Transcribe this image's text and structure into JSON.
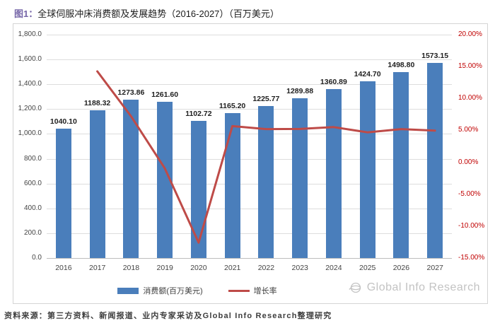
{
  "figure_title": {
    "tag": "图1：",
    "text": "全球伺服冲床消费额及发展趋势（2016-2027）（百万美元）"
  },
  "chart_data": {
    "type": "bar",
    "combo_types": [
      "bar",
      "line"
    ],
    "title": "全球伺服冲床消费额及发展趋势（2016-2027）（百万美元）",
    "categories": [
      "2016",
      "2017",
      "2018",
      "2019",
      "2020",
      "2021",
      "2022",
      "2023",
      "2024",
      "2025",
      "2026",
      "2027"
    ],
    "series": [
      {
        "name": "消费额(百万美元)",
        "type": "bar",
        "axis": "left",
        "values": [
          1040.1,
          1188.32,
          1273.86,
          1261.6,
          1102.72,
          1165.2,
          1225.77,
          1289.88,
          1360.89,
          1424.7,
          1498.8,
          1573.15
        ],
        "data_labels": [
          "1040.10",
          "1188.32",
          "1273.86",
          "1261.60",
          "1102.72",
          "1165.20",
          "1225.77",
          "1289.88",
          "1360.89",
          "1424.70",
          "1498.80",
          "1573.15"
        ]
      },
      {
        "name": "增长率",
        "type": "line",
        "axis": "right",
        "categories": [
          "2017",
          "2018",
          "2019",
          "2020",
          "2021",
          "2022",
          "2023",
          "2024",
          "2025",
          "2026",
          "2027"
        ],
        "values_percent": [
          14.25,
          7.2,
          -0.96,
          -12.59,
          5.67,
          5.2,
          5.23,
          5.51,
          4.69,
          5.2,
          4.96
        ]
      }
    ],
    "left_axis": {
      "min": 0,
      "max": 1800,
      "step": 200,
      "tick_labels": [
        "0.0",
        "200.0",
        "400.0",
        "600.0",
        "800.0",
        "1,000.0",
        "1,200.0",
        "1,400.0",
        "1,600.0",
        "1,800.0"
      ]
    },
    "right_axis": {
      "min": -15,
      "max": 20,
      "step": 5,
      "tick_labels": [
        "-15.00%",
        "-10.00%",
        "-5.00%",
        "0.00%",
        "5.00%",
        "10.00%",
        "15.00%",
        "20.00%"
      ]
    },
    "grid": true,
    "legend_position": "bottom"
  },
  "legend": [
    {
      "label": "消费额(百万美元)",
      "swatch": "bar"
    },
    {
      "label": "增长率",
      "swatch": "line"
    }
  ],
  "watermark": {
    "icon": "globe-icon",
    "text": "Global Info Research"
  },
  "source_note": "资料来源：第三方资料、新闻报道、业内专家采访及Global Info Research整理研究",
  "colors": {
    "bar": "#4a7ebb",
    "line": "#be4b48",
    "right_axis_text": "#c00000",
    "axis_text": "#444444",
    "grid": "#dddddd",
    "axis_line": "#bdbdbd",
    "bar_label_text": "#1f1f1f",
    "title_tag": "#7666a8",
    "watermark": "#c3c3c3"
  }
}
